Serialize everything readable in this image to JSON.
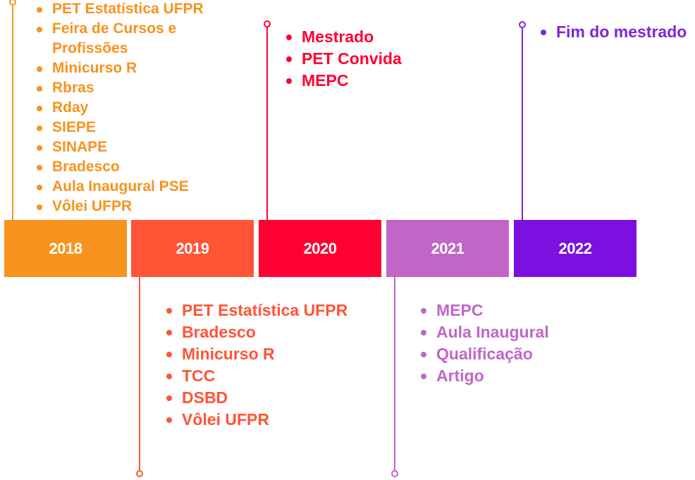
{
  "colors": {
    "y2018": "#F7931E",
    "y2019": "#FF5436",
    "y2020": "#FF0032",
    "y2021": "#C166C8",
    "y2022": "#7C10E0"
  },
  "timeline": {
    "years": [
      "2018",
      "2019",
      "2020",
      "2021",
      "2022"
    ],
    "y2018_events": [
      "PET Estatística UFPR",
      "Feira de Cursos e Profissões",
      "Minicurso R",
      "Rbras",
      "Rday",
      "SIEPE",
      "SINAPE",
      "Bradesco",
      "Aula Inaugural PSE",
      "Vôlei UFPR"
    ],
    "y2019_events": [
      "PET Estatística UFPR",
      "Bradesco",
      "Minicurso R",
      "TCC",
      "DSBD",
      "Vôlei UFPR"
    ],
    "y2020_events": [
      "Mestrado",
      "PET Convida",
      "MEPC"
    ],
    "y2021_events": [
      "MEPC",
      "Aula Inaugural",
      "Qualificação",
      "Artigo"
    ],
    "y2022_events": [
      "Fim do mestrado"
    ]
  }
}
